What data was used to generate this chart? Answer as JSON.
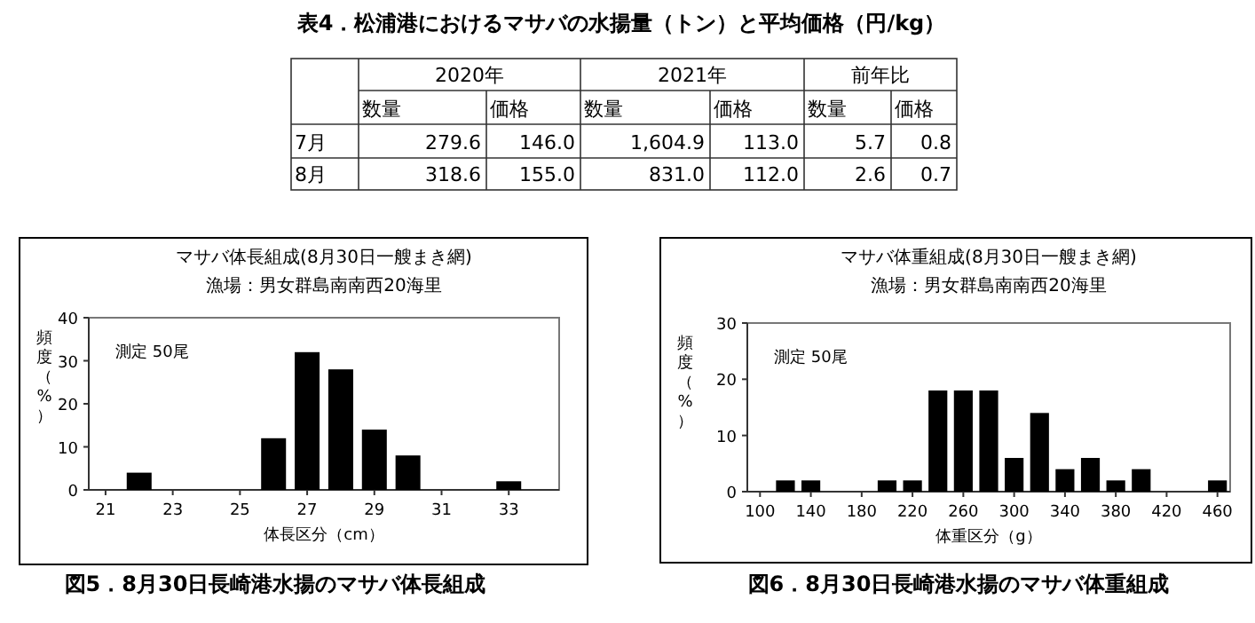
{
  "chart_data": [
    {
      "type": "other",
      "title": "表4．松浦港におけるマサバの水揚量（トン）と平均価格（円/kg）",
      "annotations": [
        "2020年",
        "2021年",
        "前年比",
        "数量",
        "価格",
        "数量",
        "価格",
        "数量",
        "価格",
        "7月",
        "279.6",
        "146.0",
        "1,604.9",
        "113.0",
        "5.7",
        "0.8",
        "8月",
        "318.6",
        "155.0",
        "831.0",
        "112.0",
        "2.6",
        "0.7"
      ]
    },
    {
      "type": "histogram",
      "title": "マサバ体長組成(8月30日一艘まき網)",
      "subtitle": "漁場：男女群島南南西20海里",
      "xlabel": "体長区分（cm）",
      "ylabel": "頻度（%）",
      "color": "#000000",
      "bins": [
        20.5,
        21.5,
        22.5,
        23.5,
        24.5,
        25.5,
        26.5,
        27.5,
        28.5,
        29.5,
        30.5,
        31.5,
        32.5,
        33.5,
        34.5
      ],
      "values": [
        0,
        4,
        0,
        0,
        0,
        12,
        32,
        28,
        14,
        8,
        0,
        0,
        2,
        0
      ],
      "xlim": [
        20.5,
        34.5
      ],
      "xticks": [
        21,
        23,
        25,
        27,
        29,
        31,
        33
      ],
      "ylim": [
        0,
        40
      ],
      "yticks": [
        0,
        10,
        20,
        30,
        40
      ],
      "grid": false,
      "annotations": [
        "測定  50尾",
        "図5．8月30日長崎港水揚のマサバ体長組成"
      ]
    },
    {
      "type": "histogram",
      "title": "マサバ体重組成(8月30日一艘まき網)",
      "subtitle": "漁場：男女群島南南西20海里",
      "xlabel": "体重区分（g）",
      "ylabel": "頻度（%）",
      "color": "#000000",
      "bins": [
        90,
        110,
        130,
        150,
        170,
        190,
        210,
        230,
        250,
        270,
        290,
        310,
        330,
        350,
        370,
        390,
        410,
        430,
        450,
        470
      ],
      "values": [
        0,
        2,
        2,
        0,
        0,
        2,
        2,
        18,
        18,
        18,
        6,
        14,
        4,
        6,
        2,
        4,
        0,
        0,
        2
      ],
      "xlim": [
        90,
        470
      ],
      "xticks": [
        100,
        140,
        180,
        220,
        260,
        300,
        340,
        380,
        420,
        460
      ],
      "ylim": [
        0,
        30
      ],
      "yticks": [
        0,
        10,
        20,
        30
      ],
      "grid": false,
      "annotations": [
        "測定  50尾",
        "図6．8月30日長崎港水揚のマサバ体重組成"
      ]
    }
  ]
}
